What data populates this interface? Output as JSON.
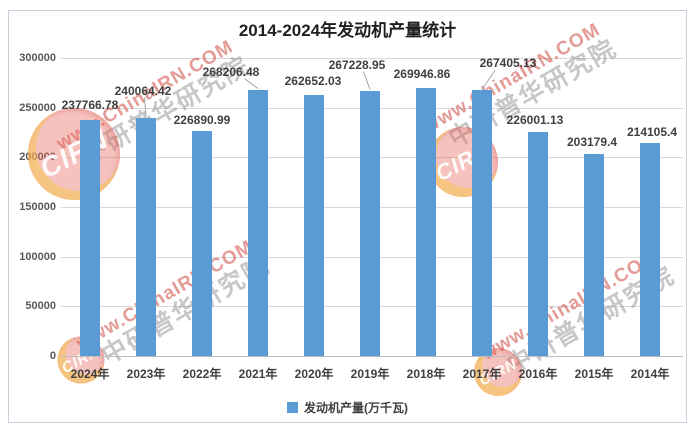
{
  "chart_data": {
    "type": "bar",
    "title": "2014-2024年发动机产量统计",
    "legend": "发动机产量(万千瓦)",
    "legend_position": "bottom",
    "grid": true,
    "ylim": [
      0,
      300000
    ],
    "ytick_step": 50000,
    "bar_color": "#5b9bd5",
    "categories": [
      "2024年",
      "2023年",
      "2022年",
      "2021年",
      "2020年",
      "2019年",
      "2018年",
      "2017年",
      "2016年",
      "2015年",
      "2014年"
    ],
    "values": [
      237766.78,
      240064.42,
      226890.99,
      268206.48,
      262652.03,
      267228.95,
      269946.86,
      267405.13,
      226001.13,
      203179.4,
      214105.4
    ],
    "points": [
      {
        "category": "2024年",
        "value": 237766.78,
        "label": "237766.78",
        "label_dx": 0,
        "label_rise": 15,
        "leader": false
      },
      {
        "category": "2023年",
        "value": 240064.42,
        "label": "240064.42",
        "label_dx": -3,
        "label_rise": 27,
        "leader": true
      },
      {
        "category": "2022年",
        "value": 226890.99,
        "label": "226890.99",
        "label_dx": 0,
        "label_rise": 11,
        "leader": false
      },
      {
        "category": "2021年",
        "value": 268206.48,
        "label": "268206.48",
        "label_dx": -27,
        "label_rise": 18,
        "leader": true
      },
      {
        "category": "2020年",
        "value": 262652.03,
        "label": "262652.03",
        "label_dx": -1,
        "label_rise": 14,
        "leader": false
      },
      {
        "category": "2019年",
        "value": 267228.95,
        "label": "267228.95",
        "label_dx": -13,
        "label_rise": 26,
        "leader": true
      },
      {
        "category": "2018年",
        "value": 269946.86,
        "label": "269946.86",
        "label_dx": -4,
        "label_rise": 14,
        "leader": false
      },
      {
        "category": "2017年",
        "value": 267405.13,
        "label": "267405.13",
        "label_dx": 26,
        "label_rise": 27,
        "leader": true
      },
      {
        "category": "2016年",
        "value": 226001.13,
        "label": "226001.13",
        "label_dx": -3,
        "label_rise": 12,
        "leader": false
      },
      {
        "category": "2015年",
        "value": 203179.4,
        "label": "203179.4",
        "label_dx": -2,
        "label_rise": 12,
        "leader": false
      },
      {
        "category": "2014年",
        "value": 214105.4,
        "label": "214105.4",
        "label_dx": 2,
        "label_rise": 11,
        "leader": false
      }
    ],
    "leader_line_color": "#a6a6a6",
    "gridline_color": "#d9d9d9",
    "axis_line_color": "#bfbfbf"
  },
  "watermark": {
    "line1": "www.ChinaIRN.COM",
    "line2": "中研普华研究院",
    "badge_text": "CIRN",
    "red": "#ce4840",
    "gray": "#828282",
    "badge_yellow": "#f7c846"
  }
}
